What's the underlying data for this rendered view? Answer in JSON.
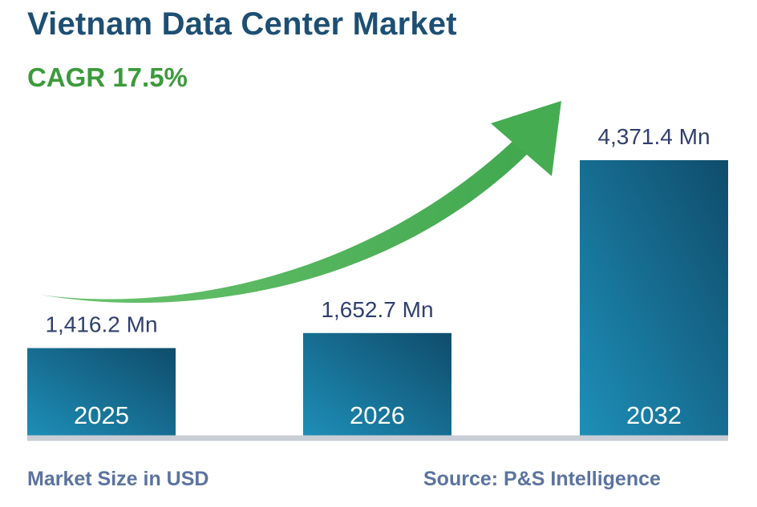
{
  "title": "Vietnam Data Center Market",
  "subtitle": "CAGR 17.5%",
  "footer": {
    "left": "Market Size in USD",
    "right": "Source: P&S Intelligence"
  },
  "colors": {
    "title": "#1d4f73",
    "cagr": "#3c9a3c",
    "bar_top": "#0f4c6b",
    "bar_bottom": "#1e8fb8",
    "arrow": "#4fb55b",
    "baseline": "#c9ced6",
    "value_label": "#2f3f6e"
  },
  "chart_data": {
    "type": "bar",
    "title": "Vietnam Data Center Market",
    "subtitle": "CAGR 17.5%",
    "categories": [
      "2025",
      "2026",
      "2032"
    ],
    "values": [
      1416.2,
      1652.7,
      4371.4
    ],
    "value_labels": [
      "1,416.2 Mn",
      "1,652.7 Mn",
      "4,371.4 Mn"
    ],
    "xlabel": "Market Size in USD",
    "ylabel": "",
    "unit": "Mn",
    "ylim": [
      0,
      4371.4
    ],
    "annotations": [
      "CAGR 17.5%"
    ],
    "legend": "none",
    "grid": false
  }
}
